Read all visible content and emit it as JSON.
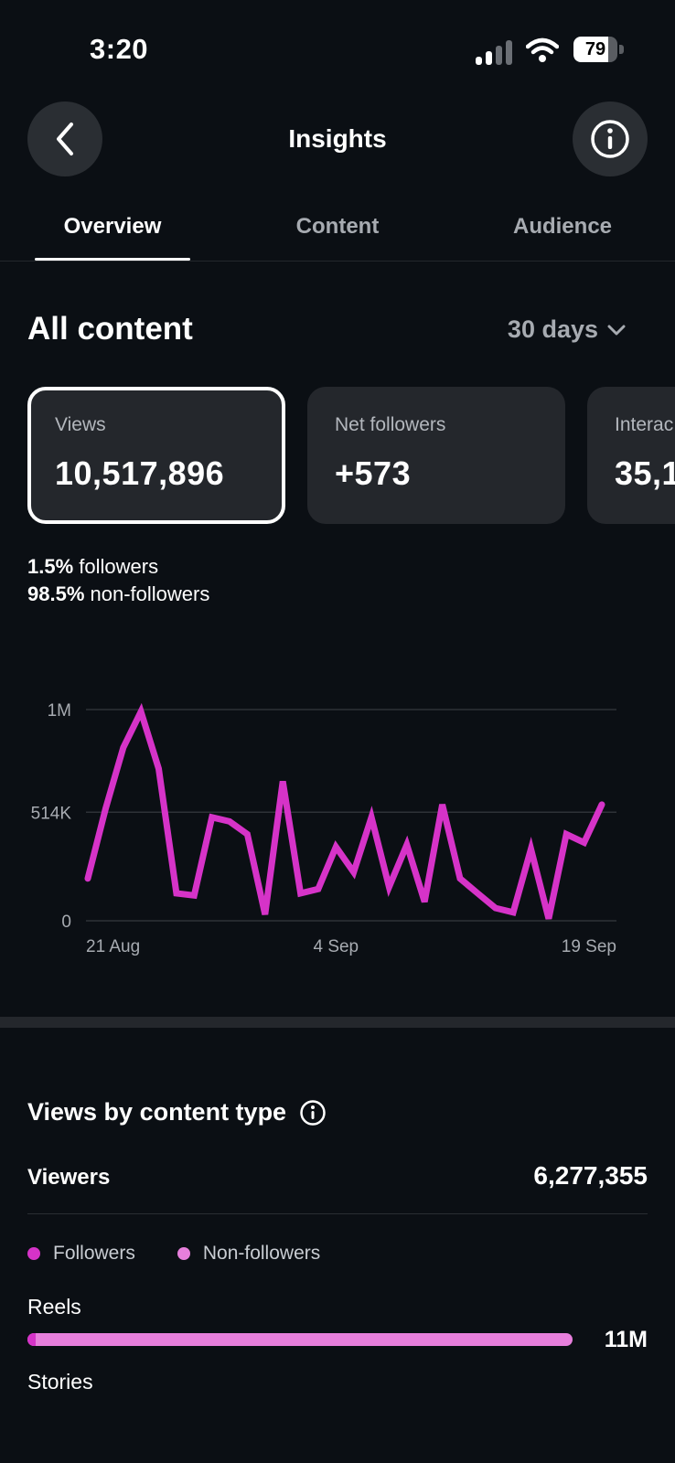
{
  "status_bar": {
    "time": "3:20",
    "battery": "79",
    "battery_level": 0.79
  },
  "header": {
    "title": "Insights"
  },
  "tabs": [
    {
      "label": "Overview",
      "active": true
    },
    {
      "label": "Content",
      "active": false
    },
    {
      "label": "Audience",
      "active": false
    }
  ],
  "section": {
    "title": "All content",
    "range": "30 days"
  },
  "cards": [
    {
      "label": "Views",
      "value": "10,517,896",
      "selected": true
    },
    {
      "label": "Net followers",
      "value": "+573",
      "selected": false
    },
    {
      "label": "Interac",
      "value": "35,1",
      "selected": false
    }
  ],
  "split": {
    "followers_pct": "1.5%",
    "followers_text": " followers",
    "non_followers_pct": "98.5%",
    "non_followers_text": " non-followers"
  },
  "chart_data": {
    "type": "line",
    "y_ticks": [
      {
        "label": "1M",
        "value": 1000000
      },
      {
        "label": "514K",
        "value": 514000
      },
      {
        "label": "0",
        "value": 0
      }
    ],
    "x_ticks": [
      "21 Aug",
      "4 Sep",
      "19 Sep"
    ],
    "ylim": [
      0,
      1000000
    ],
    "grid": true,
    "color": "#d633c8",
    "x": [
      "21 Aug",
      "22 Aug",
      "23 Aug",
      "24 Aug",
      "25 Aug",
      "26 Aug",
      "27 Aug",
      "28 Aug",
      "29 Aug",
      "30 Aug",
      "31 Aug",
      "1 Sep",
      "2 Sep",
      "3 Sep",
      "4 Sep",
      "5 Sep",
      "6 Sep",
      "7 Sep",
      "8 Sep",
      "9 Sep",
      "10 Sep",
      "11 Sep",
      "12 Sep",
      "13 Sep",
      "14 Sep",
      "15 Sep",
      "16 Sep",
      "17 Sep",
      "18 Sep",
      "19 Sep"
    ],
    "series": [
      {
        "values": [
          200000,
          530000,
          820000,
          990000,
          720000,
          130000,
          120000,
          490000,
          470000,
          410000,
          30000,
          660000,
          130000,
          150000,
          350000,
          230000,
          490000,
          160000,
          360000,
          90000,
          550000,
          200000,
          130000,
          60000,
          40000,
          340000,
          10000,
          410000,
          370000,
          550000
        ]
      }
    ]
  },
  "views_by_type": {
    "title": "Views by content type",
    "viewers_label": "Viewers",
    "viewers_value": "6,277,355",
    "legend": [
      {
        "label": "Followers",
        "color": "#d633c8"
      },
      {
        "label": "Non-followers",
        "color": "#e77fdc"
      }
    ],
    "reels_label": "Reels",
    "reels_value": "11M",
    "reels_followers_fraction": 0.015,
    "stories_label": "Stories"
  }
}
